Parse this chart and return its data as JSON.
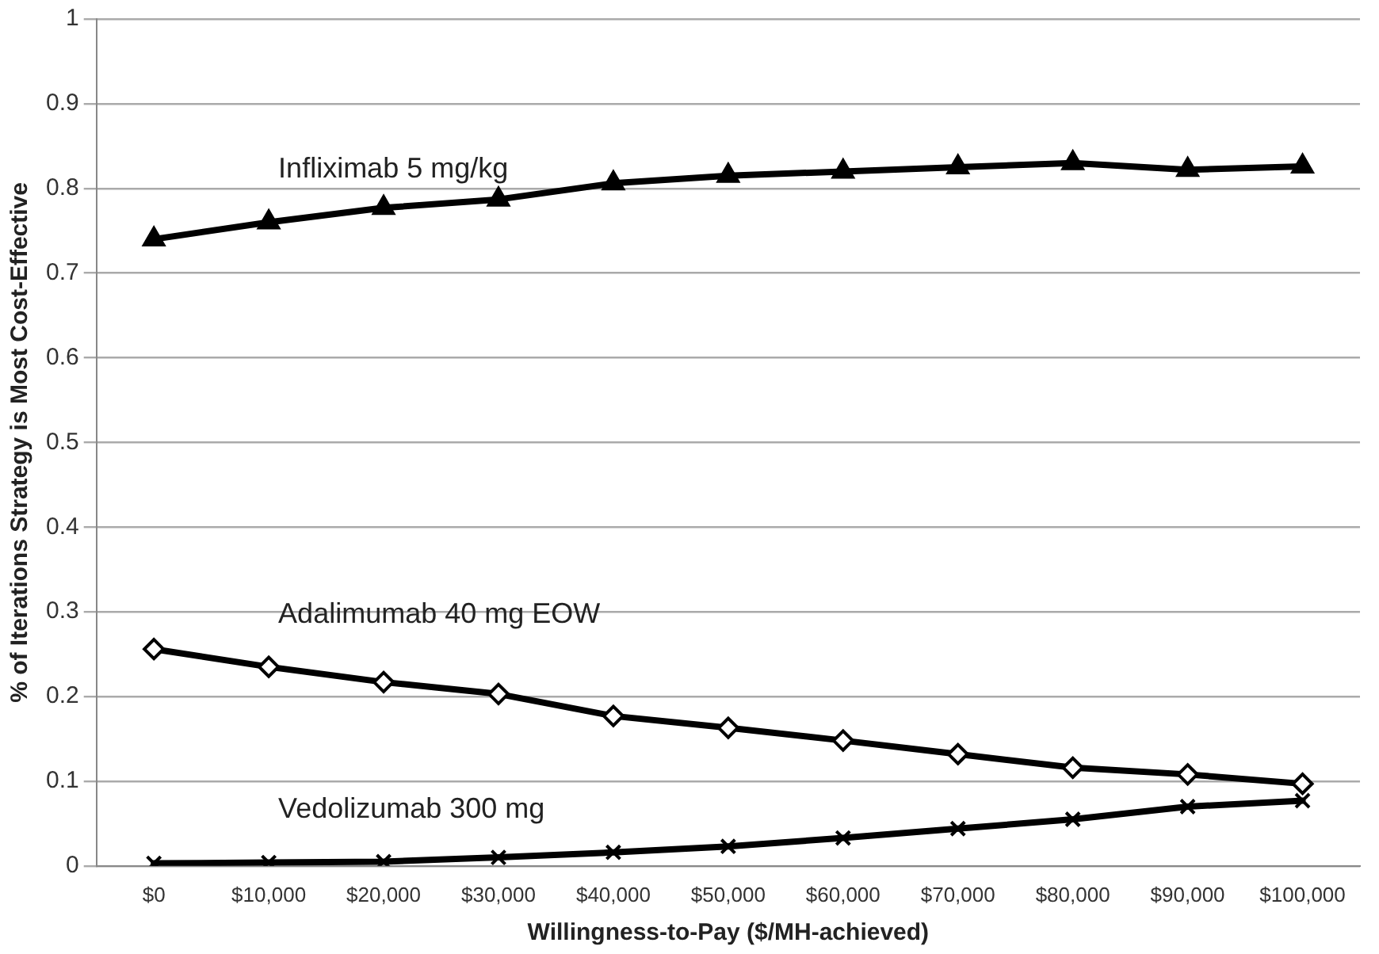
{
  "chart_data": {
    "type": "line",
    "xlabel": "Willingness-to-Pay ($/MH-achieved)",
    "ylabel": "% of Iterations Strategy is Most Cost-Effective",
    "categories": [
      "$0",
      "$10,000",
      "$20,000",
      "$30,000",
      "$40,000",
      "$50,000",
      "$60,000",
      "$70,000",
      "$80,000",
      "$90,000",
      "$100,000"
    ],
    "series": [
      {
        "name": "Infliximab 5 mg/kg",
        "color": "#000000",
        "marker": "triangle",
        "values": [
          0.74,
          0.76,
          0.777,
          0.787,
          0.806,
          0.815,
          0.82,
          0.825,
          0.83,
          0.822,
          0.826
        ]
      },
      {
        "name": "Adalimumab 40 mg EOW",
        "color": "#000000",
        "marker": "diamond",
        "values": [
          0.256,
          0.235,
          0.217,
          0.203,
          0.177,
          0.163,
          0.148,
          0.132,
          0.116,
          0.108,
          0.097
        ]
      },
      {
        "name": "Vedolizumab 300 mg",
        "color": "#000000",
        "marker": "cross",
        "values": [
          0.003,
          0.004,
          0.005,
          0.01,
          0.016,
          0.023,
          0.033,
          0.044,
          0.055,
          0.07,
          0.077
        ]
      }
    ],
    "ylim": [
      0,
      1
    ],
    "yticks": [
      0,
      0.1,
      0.2,
      0.3,
      0.4,
      0.5,
      0.6,
      0.7,
      0.8,
      0.9,
      1
    ],
    "grid": "y",
    "legend": false,
    "line_style": "solid"
  }
}
